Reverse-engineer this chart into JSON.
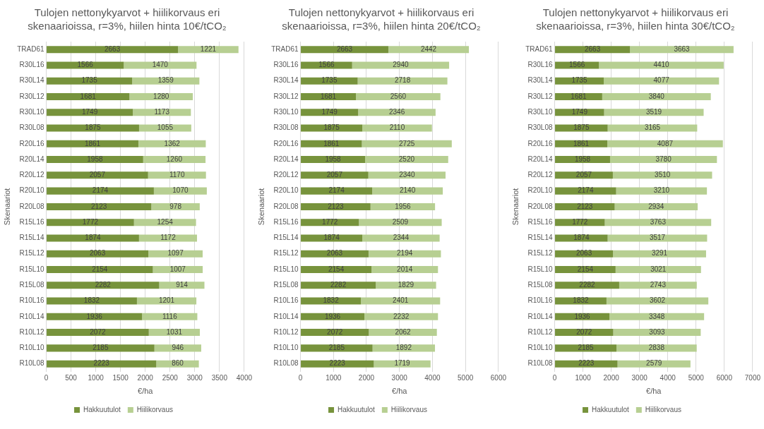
{
  "chart_data": [
    {
      "type": "bar",
      "title": "Tulojen nettonykyarvot + hiilikorvaus eri skenaarioissa, r=3%, hiilen hinta 10€/tCO₂",
      "xlabel": "€/ha",
      "ylabel": "Skenaariot",
      "orientation": "horizontal",
      "stacked": true,
      "data_labels": true,
      "grid": "x",
      "legend": "bottom",
      "categories": [
        "TRAD61",
        "R30L16",
        "R30L14",
        "R30L12",
        "R30L10",
        "R30L08",
        "R20L16",
        "R20L14",
        "R20L12",
        "R20L10",
        "R20L08",
        "R15L16",
        "R15L14",
        "R15L12",
        "R15L10",
        "R15L08",
        "R10L16",
        "R10L14",
        "R10L12",
        "R10L10",
        "R10L08"
      ],
      "xlim": [
        0,
        4000
      ],
      "xticks": [
        0,
        500,
        1000,
        1500,
        2000,
        2500,
        3000,
        3500,
        4000
      ],
      "series": [
        {
          "name": "Hakkuutulot",
          "color": "#77933c",
          "values": [
            2663,
            1566,
            1735,
            1681,
            1749,
            1875,
            1861,
            1958,
            2057,
            2174,
            2123,
            1772,
            1874,
            2063,
            2154,
            2282,
            1832,
            1936,
            2072,
            2185,
            2223
          ]
        },
        {
          "name": "Hiilikorvaus",
          "color": "#b7cf92",
          "values": [
            1221,
            1470,
            1359,
            1280,
            1173,
            1055,
            1362,
            1260,
            1170,
            1070,
            978,
            1254,
            1172,
            1097,
            1007,
            914,
            1201,
            1116,
            1031,
            946,
            860
          ]
        }
      ]
    },
    {
      "type": "bar",
      "title": "Tulojen nettonykyarvot + hiilikorvaus eri skenaarioissa, r=3%, hiilen hinta 20€/tCO₂",
      "xlabel": "€/ha",
      "ylabel": "Skenaariot",
      "orientation": "horizontal",
      "stacked": true,
      "data_labels": true,
      "grid": "x",
      "legend": "bottom",
      "categories": [
        "TRAD61",
        "R30L16",
        "R30L14",
        "R30L12",
        "R30L10",
        "R30L08",
        "R20L16",
        "R20L14",
        "R20L12",
        "R20L10",
        "R20L08",
        "R15L16",
        "R15L14",
        "R15L12",
        "R15L10",
        "R15L08",
        "R10L16",
        "R10L14",
        "R10L12",
        "R10L10",
        "R10L08"
      ],
      "xlim": [
        0,
        6000
      ],
      "xticks": [
        0,
        1000,
        2000,
        3000,
        4000,
        5000,
        6000
      ],
      "series": [
        {
          "name": "Hakkuutulot",
          "color": "#77933c",
          "values": [
            2663,
            1566,
            1735,
            1681,
            1749,
            1875,
            1861,
            1958,
            2057,
            2174,
            2123,
            1772,
            1874,
            2063,
            2154,
            2282,
            1832,
            1936,
            2072,
            2185,
            2223
          ]
        },
        {
          "name": "Hiilikorvaus",
          "color": "#b7cf92",
          "values": [
            2442,
            2940,
            2718,
            2560,
            2346,
            2110,
            2725,
            2520,
            2340,
            2140,
            1956,
            2509,
            2344,
            2194,
            2014,
            1829,
            2401,
            2232,
            2062,
            1892,
            1719
          ]
        }
      ]
    },
    {
      "type": "bar",
      "title": "Tulojen nettonykyarvot + hiilikorvaus eri skenaarioissa, r=3%, hiilen hinta 30€/tCO₂",
      "xlabel": "€/ha",
      "ylabel": "Skenaariot",
      "orientation": "horizontal",
      "stacked": true,
      "data_labels": true,
      "grid": "x",
      "legend": "bottom",
      "categories": [
        "TRAD61",
        "R30L16",
        "R30L14",
        "R30L12",
        "R30L10",
        "R30L08",
        "R20L16",
        "R20L14",
        "R20L12",
        "R20L10",
        "R20L08",
        "R15L16",
        "R15L14",
        "R15L12",
        "R15L10",
        "R15L08",
        "R10L16",
        "R10L14",
        "R10L12",
        "R10L10",
        "R10L08"
      ],
      "xlim": [
        0,
        7000
      ],
      "xticks": [
        0,
        1000,
        2000,
        3000,
        4000,
        5000,
        6000,
        7000
      ],
      "series": [
        {
          "name": "Hakkuutulot",
          "color": "#77933c",
          "values": [
            2663,
            1566,
            1735,
            1681,
            1749,
            1875,
            1861,
            1958,
            2057,
            2174,
            2123,
            1772,
            1874,
            2063,
            2154,
            2282,
            1832,
            1936,
            2072,
            2185,
            2223
          ]
        },
        {
          "name": "Hiilikorvaus",
          "color": "#b7cf92",
          "values": [
            3663,
            4410,
            4077,
            3840,
            3519,
            3165,
            4087,
            3780,
            3510,
            3210,
            2934,
            3763,
            3517,
            3291,
            3021,
            2743,
            3602,
            3348,
            3093,
            2838,
            2579
          ]
        }
      ]
    }
  ]
}
